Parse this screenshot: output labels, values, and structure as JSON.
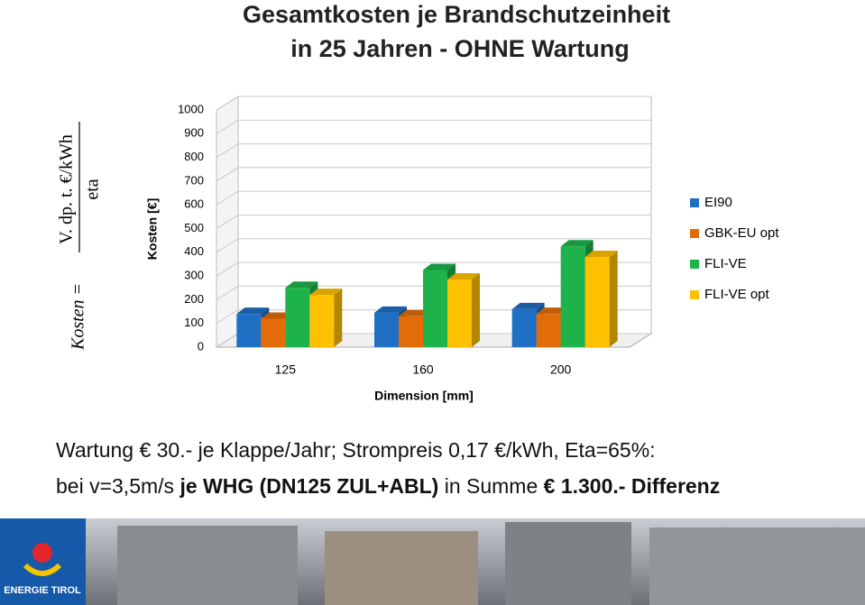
{
  "chart_data": {
    "type": "bar3d",
    "title": [
      "Gesamtkosten je Brandschutzeinheit",
      "in 25 Jahren - OHNE Wartung"
    ],
    "x_label": "Dimension [mm]",
    "y_label": "Kosten [€]",
    "categories": [
      "125",
      "160",
      "200"
    ],
    "series": [
      {
        "name": "EI90",
        "color": "#1f6fc5",
        "values": [
          140,
          145,
          160
        ]
      },
      {
        "name": "GBK-EU opt",
        "color": "#e36c0a",
        "values": [
          120,
          130,
          140
        ]
      },
      {
        "name": "FLI-VE",
        "color": "#1db34a",
        "values": [
          250,
          325,
          425
        ]
      },
      {
        "name": "FLI-VE opt",
        "color": "#ffc000",
        "values": [
          220,
          285,
          380
        ]
      }
    ],
    "ylim": [
      0,
      1000
    ],
    "yticks": [
      0,
      100,
      200,
      300,
      400,
      500,
      600,
      700,
      800,
      900,
      1000
    ],
    "grid": true
  },
  "formula": {
    "lhs": "Kosten =",
    "numerator": "V. dp. t. €/kWh",
    "denominator": "eta"
  },
  "notes": [
    "Wartung € 30.- je Klappe/Jahr; Strompreis 0,17 €/kWh, Eta=65%:",
    [
      "bei v=3,5m/s ",
      "je WHG (DN125 ZUL+ABL)",
      " in Summe ",
      "€ 1.300.- Differenz"
    ]
  ],
  "logo": "ENERGIE TIROL"
}
